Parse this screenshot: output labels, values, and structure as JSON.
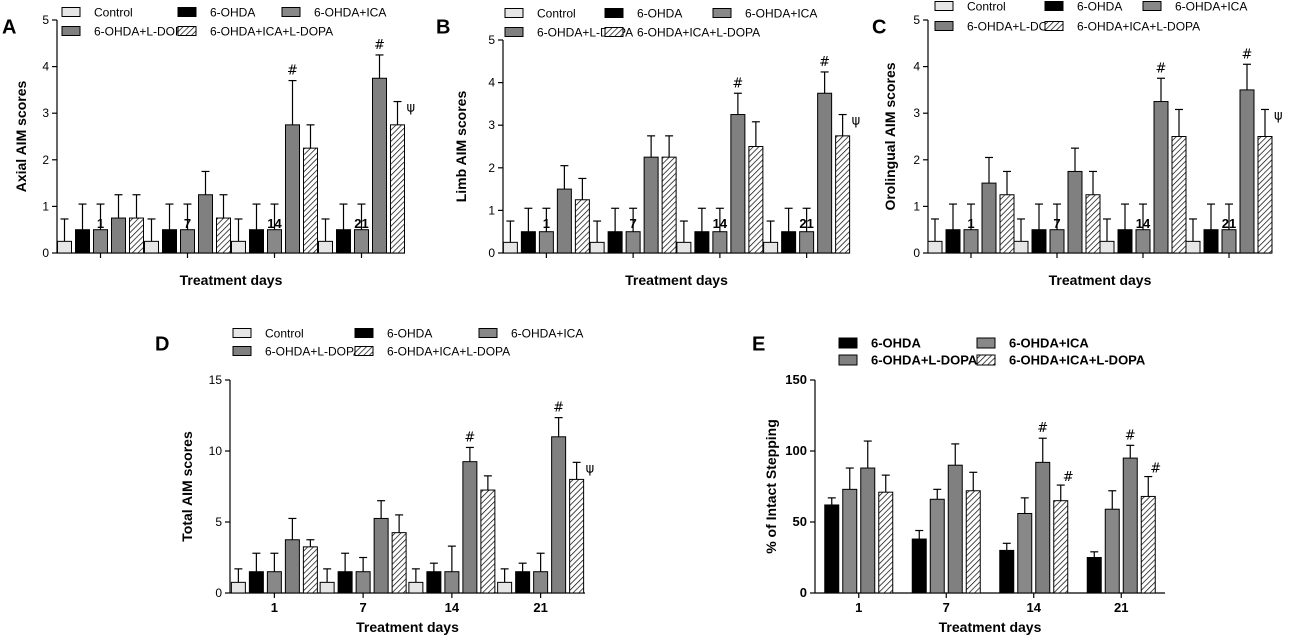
{
  "styles": {
    "Control": {
      "fill": "#e6e6e6",
      "hatch": false
    },
    "6-OHDA": {
      "fill": "#000000",
      "hatch": false
    },
    "6-OHDA+ICA": {
      "fill": "#888888",
      "hatch": false
    },
    "6-OHDA+L-DOPA": {
      "fill": "#808080",
      "hatch": false
    },
    "6-OHDA+ICA+L-DOPA": {
      "fill": "#ffffff",
      "hatch": true
    }
  },
  "chart_data": [
    {
      "panel": "A",
      "type": "bar",
      "xlabel": "Treatment days",
      "ylabel": "Axial AIM scores",
      "ylim": [
        0,
        5
      ],
      "yticks": [
        0,
        1,
        2,
        3,
        4,
        5
      ],
      "categories": [
        "1",
        "7",
        "14",
        "21"
      ],
      "legend_order": [
        "Control",
        "6-OHDA",
        "6-OHDA+ICA",
        "6-OHDA+L-DOPA",
        "6-OHDA+ICA+L-DOPA"
      ],
      "series": [
        {
          "name": "Control",
          "values": [
            0.25,
            0.25,
            0.25,
            0.25
          ],
          "errors": [
            0.48,
            0.48,
            0.48,
            0.48
          ],
          "marks": [
            "",
            "",
            "",
            ""
          ]
        },
        {
          "name": "6-OHDA",
          "values": [
            0.5,
            0.5,
            0.5,
            0.5
          ],
          "errors": [
            0.55,
            0.55,
            0.55,
            0.55
          ],
          "marks": [
            "",
            "",
            "",
            ""
          ]
        },
        {
          "name": "6-OHDA+ICA",
          "values": [
            0.5,
            0.5,
            0.5,
            0.5
          ],
          "errors": [
            0.55,
            0.55,
            0.55,
            0.55
          ],
          "marks": [
            "",
            "",
            "",
            ""
          ]
        },
        {
          "name": "6-OHDA+L-DOPA",
          "values": [
            0.75,
            1.25,
            2.75,
            3.75
          ],
          "errors": [
            0.5,
            0.5,
            0.95,
            0.5
          ],
          "marks": [
            "",
            "",
            "#",
            "#"
          ]
        },
        {
          "name": "6-OHDA+ICA+L-DOPA",
          "values": [
            0.75,
            0.75,
            2.25,
            2.75
          ],
          "errors": [
            0.5,
            0.5,
            0.5,
            0.5
          ],
          "marks": [
            "",
            "",
            "",
            "ψ"
          ]
        }
      ]
    },
    {
      "panel": "B",
      "type": "bar",
      "xlabel": "Treatment days",
      "ylabel": "Limb AIM scores",
      "ylim": [
        0,
        5
      ],
      "yticks": [
        0,
        1,
        2,
        3,
        4,
        5
      ],
      "categories": [
        "1",
        "7",
        "14",
        "21"
      ],
      "legend_order": [
        "Control",
        "6-OHDA",
        "6-OHDA+ICA",
        "6-OHDA+L-DOPA",
        "6-OHDA+ICA+L-DOPA"
      ],
      "series": [
        {
          "name": "Control",
          "values": [
            0.25,
            0.25,
            0.25,
            0.25
          ],
          "errors": [
            0.5,
            0.5,
            0.5,
            0.5
          ],
          "marks": [
            "",
            "",
            "",
            ""
          ]
        },
        {
          "name": "6-OHDA",
          "values": [
            0.5,
            0.5,
            0.5,
            0.5
          ],
          "errors": [
            0.55,
            0.55,
            0.55,
            0.55
          ],
          "marks": [
            "",
            "",
            "",
            ""
          ]
        },
        {
          "name": "6-OHDA+ICA",
          "values": [
            0.5,
            0.5,
            0.5,
            0.5
          ],
          "errors": [
            0.55,
            0.55,
            0.55,
            0.55
          ],
          "marks": [
            "",
            "",
            "",
            ""
          ]
        },
        {
          "name": "6-OHDA+L-DOPA",
          "values": [
            1.5,
            2.25,
            3.25,
            3.75
          ],
          "errors": [
            0.55,
            0.5,
            0.5,
            0.5
          ],
          "marks": [
            "",
            "",
            "#",
            "#"
          ]
        },
        {
          "name": "6-OHDA+ICA+L-DOPA",
          "values": [
            1.25,
            2.25,
            2.5,
            2.75
          ],
          "errors": [
            0.5,
            0.5,
            0.58,
            0.5
          ],
          "marks": [
            "",
            "",
            "",
            "ψ"
          ]
        }
      ]
    },
    {
      "panel": "C",
      "type": "bar",
      "xlabel": "Treatment days",
      "ylabel": "Orolingual AIM scores",
      "ylim": [
        0,
        5
      ],
      "yticks": [
        0,
        1,
        2,
        3,
        4,
        5
      ],
      "categories": [
        "1",
        "7",
        "14",
        "21"
      ],
      "legend_order": [
        "Control",
        "6-OHDA",
        "6-OHDA+ICA",
        "6-OHDA+L-DOPA",
        "6-OHDA+ICA+L-DOPA"
      ],
      "series": [
        {
          "name": "Control",
          "values": [
            0.25,
            0.25,
            0.25,
            0.25
          ],
          "errors": [
            0.48,
            0.48,
            0.48,
            0.48
          ],
          "marks": [
            "",
            "",
            "",
            ""
          ]
        },
        {
          "name": "6-OHDA",
          "values": [
            0.5,
            0.5,
            0.5,
            0.5
          ],
          "errors": [
            0.55,
            0.55,
            0.55,
            0.55
          ],
          "marks": [
            "",
            "",
            "",
            ""
          ]
        },
        {
          "name": "6-OHDA+ICA",
          "values": [
            0.5,
            0.5,
            0.5,
            0.5
          ],
          "errors": [
            0.55,
            0.55,
            0.55,
            0.55
          ],
          "marks": [
            "",
            "",
            "",
            ""
          ]
        },
        {
          "name": "6-OHDA+L-DOPA",
          "values": [
            1.5,
            1.75,
            3.25,
            3.5
          ],
          "errors": [
            0.55,
            0.5,
            0.5,
            0.55
          ],
          "marks": [
            "",
            "",
            "#",
            "#"
          ]
        },
        {
          "name": "6-OHDA+ICA+L-DOPA",
          "values": [
            1.25,
            1.25,
            2.5,
            2.5
          ],
          "errors": [
            0.5,
            0.5,
            0.58,
            0.58
          ],
          "marks": [
            "",
            "",
            "",
            "ψ"
          ]
        }
      ]
    },
    {
      "panel": "D",
      "type": "bar",
      "xlabel": "Treatment days",
      "ylabel": "Total AIM scores",
      "ylim": [
        0,
        15
      ],
      "yticks": [
        0,
        5,
        10,
        15
      ],
      "categories": [
        "1",
        "7",
        "14",
        "21"
      ],
      "legend_order": [
        "Control",
        "6-OHDA",
        "6-OHDA+ICA",
        "6-OHDA+L-DOPA",
        "6-OHDA+ICA+L-DOPA"
      ],
      "series": [
        {
          "name": "Control",
          "values": [
            0.75,
            0.75,
            0.75,
            0.75
          ],
          "errors": [
            0.95,
            0.95,
            0.95,
            0.95
          ],
          "marks": [
            "",
            "",
            "",
            ""
          ]
        },
        {
          "name": "6-OHDA",
          "values": [
            1.5,
            1.5,
            1.5,
            1.5
          ],
          "errors": [
            1.3,
            1.3,
            0.6,
            0.6
          ],
          "marks": [
            "",
            "",
            "",
            ""
          ]
        },
        {
          "name": "6-OHDA+ICA",
          "values": [
            1.5,
            1.5,
            1.5,
            1.5
          ],
          "errors": [
            1.3,
            1.0,
            1.8,
            1.3
          ],
          "marks": [
            "",
            "",
            "",
            ""
          ]
        },
        {
          "name": "6-OHDA+L-DOPA",
          "values": [
            3.75,
            5.25,
            9.25,
            11.0
          ],
          "errors": [
            1.5,
            1.25,
            1.0,
            1.35
          ],
          "marks": [
            "",
            "",
            "#",
            "#"
          ]
        },
        {
          "name": "6-OHDA+ICA+L-DOPA",
          "values": [
            3.25,
            4.25,
            7.25,
            8.0
          ],
          "errors": [
            0.5,
            1.25,
            1.0,
            1.2
          ],
          "marks": [
            "",
            "",
            "",
            "ψ"
          ]
        }
      ]
    },
    {
      "panel": "E",
      "type": "bar",
      "xlabel": "Treatment days",
      "ylabel": "% of Intact Stepping",
      "ylim": [
        0,
        150
      ],
      "yticks": [
        0,
        50,
        100,
        150
      ],
      "categories": [
        "1",
        "7",
        "14",
        "21"
      ],
      "legend_order": [
        "6-OHDA",
        "6-OHDA+ICA",
        "6-OHDA+L-DOPA",
        "6-OHDA+ICA+L-DOPA"
      ],
      "series": [
        {
          "name": "6-OHDA",
          "values": [
            62,
            38,
            30,
            25
          ],
          "errors": [
            5,
            6,
            5,
            4
          ],
          "marks": [
            "",
            "",
            "",
            ""
          ]
        },
        {
          "name": "6-OHDA+ICA",
          "values": [
            73,
            66,
            56,
            59
          ],
          "errors": [
            15,
            7,
            11,
            13
          ],
          "marks": [
            "",
            "",
            "",
            ""
          ]
        },
        {
          "name": "6-OHDA+L-DOPA",
          "values": [
            88,
            90,
            92,
            95
          ],
          "errors": [
            19,
            15,
            17,
            9
          ],
          "marks": [
            "",
            "",
            "#",
            "#"
          ]
        },
        {
          "name": "6-OHDA+ICA+L-DOPA",
          "values": [
            71,
            72,
            65,
            68
          ],
          "errors": [
            12,
            13,
            11,
            14
          ],
          "marks": [
            "",
            "",
            "#",
            "#"
          ]
        }
      ]
    }
  ]
}
